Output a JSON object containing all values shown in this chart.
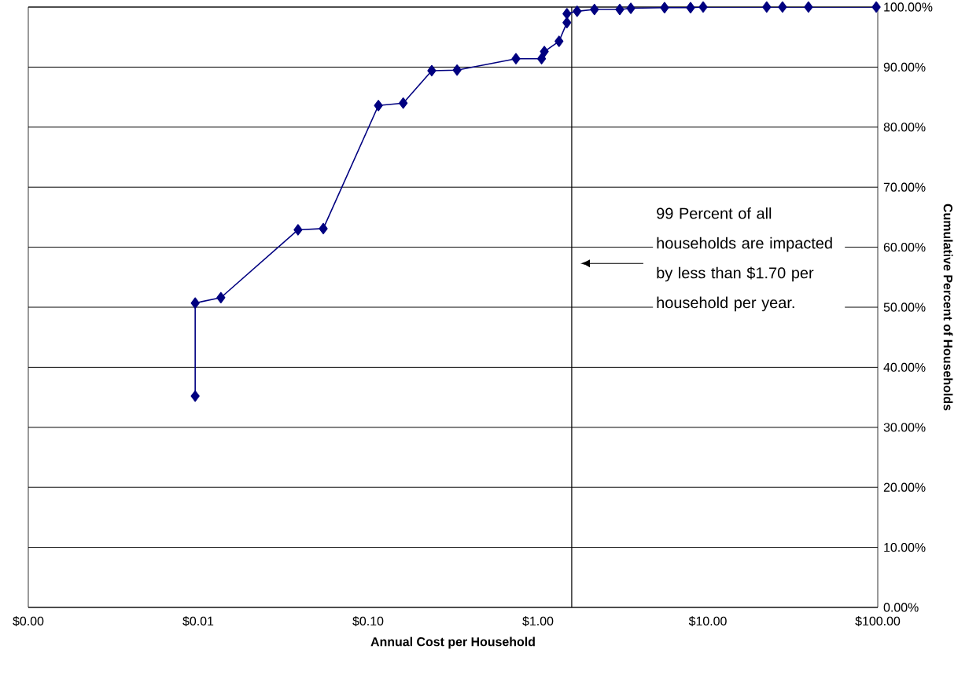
{
  "chart_data": {
    "type": "line",
    "xlabel": "Annual Cost per Household",
    "ylabel": "Cumulative Percent of Households",
    "x": [
      0.0096,
      0.0096,
      0.0136,
      0.0387,
      0.0545,
      0.115,
      0.161,
      0.237,
      0.334,
      0.742,
      1.05,
      1.09,
      1.33,
      1.48,
      1.48,
      1.7,
      2.15,
      3.03,
      3.52,
      5.56,
      7.91,
      9.38,
      22.2,
      27.5,
      39.1,
      98
    ],
    "series": [
      {
        "color": "#000080",
        "values": [
          35.2,
          50.7,
          51.6,
          62.9,
          63.1,
          83.6,
          84.0,
          89.4,
          89.5,
          91.4,
          91.4,
          92.6,
          94.3,
          97.4,
          98.9,
          99.3,
          99.6,
          99.6,
          99.8,
          99.9,
          99.9,
          100,
          100,
          100,
          100,
          100
        ]
      }
    ],
    "log": "x",
    "xlim": [
      0.001,
      100
    ],
    "xticks": [
      {
        "value": 0.001,
        "label": "$0.00"
      },
      {
        "value": 0.01,
        "label": "$0.01"
      },
      {
        "value": 0.1,
        "label": "$0.10"
      },
      {
        "value": 1,
        "label": "$1.00"
      },
      {
        "value": 10,
        "label": "$10.00"
      },
      {
        "value": 100,
        "label": "$100.00"
      }
    ],
    "ylim": [
      0,
      100
    ],
    "yticks": [
      {
        "value": 0,
        "label": "0.00%"
      },
      {
        "value": 10,
        "label": "10.00%"
      },
      {
        "value": 20,
        "label": "20.00%"
      },
      {
        "value": 30,
        "label": "30.00%"
      },
      {
        "value": 40,
        "label": "40.00%"
      },
      {
        "value": 50,
        "label": "50.00%"
      },
      {
        "value": 60,
        "label": "60.00%"
      },
      {
        "value": 70,
        "label": "70.00%"
      },
      {
        "value": 80,
        "label": "80.00%"
      },
      {
        "value": 90,
        "label": "90.00%"
      },
      {
        "value": 100,
        "label": "100.00%"
      }
    ],
    "grid": "y",
    "marker": "diamond",
    "line_style": "solid",
    "ref_lines": [
      {
        "axis": "x",
        "value": 1.58,
        "color": "#000000"
      }
    ],
    "annotations": [
      "99 Percent of all households are impacted by less than $1.70 per household per year."
    ]
  }
}
